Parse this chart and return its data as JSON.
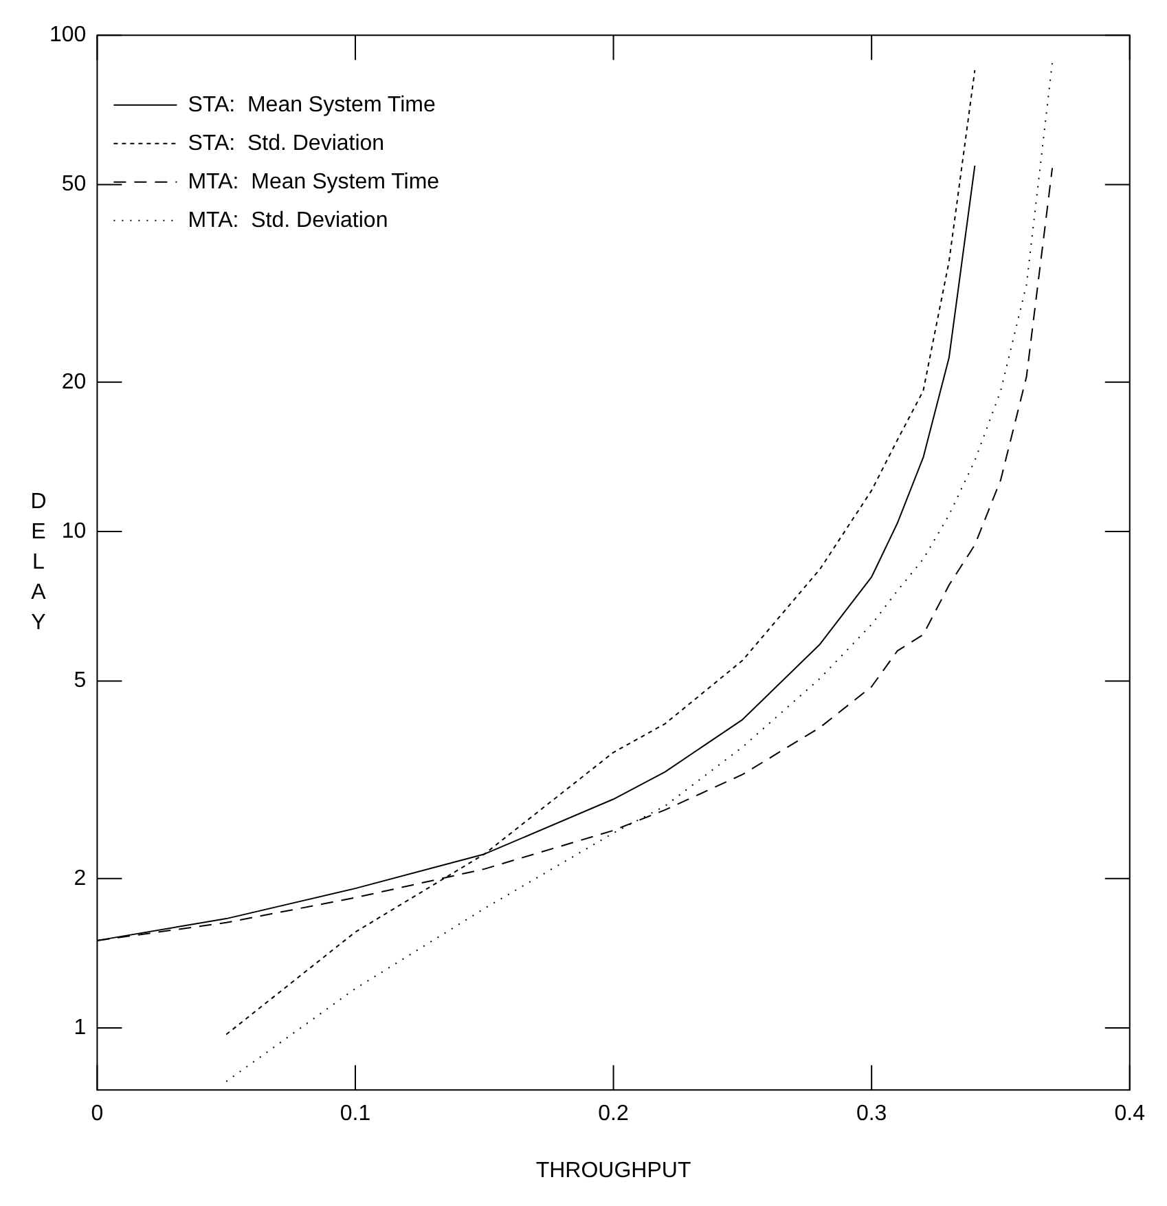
{
  "chart_data": {
    "type": "line",
    "xlabel": "THROUGHPUT",
    "ylabel": "DELAY",
    "log": "y",
    "xlim": [
      0,
      0.4
    ],
    "xticks": [
      0,
      0.1,
      0.2,
      0.3,
      0.4
    ],
    "ylim": [
      0.75,
      100
    ],
    "yticks": [
      1,
      2,
      5,
      10,
      20,
      50,
      100
    ],
    "grid": false,
    "legend": "top left",
    "marker": "none",
    "series": [
      {
        "name": "STA:  Mean System Time",
        "color": "#000000",
        "line_style": "solid",
        "x": [
          0,
          0.05,
          0.1,
          0.15,
          0.2,
          0.22,
          0.25,
          0.28,
          0.3,
          0.31,
          0.32,
          0.33,
          0.34
        ],
        "values": [
          1.5,
          1.66,
          1.91,
          2.24,
          2.89,
          3.28,
          4.18,
          5.93,
          8.1,
          10.4,
          14.1,
          22.4,
          54.6
        ]
      },
      {
        "name": "STA:  Std. Deviation",
        "color": "#000000",
        "line_style": "dashed",
        "x": [
          0.05,
          0.1,
          0.15,
          0.2,
          0.22,
          0.25,
          0.28,
          0.3,
          0.31,
          0.32,
          0.33,
          0.34
        ],
        "values": [
          0.97,
          1.56,
          2.24,
          3.59,
          4.1,
          5.5,
          8.4,
          12.1,
          15.3,
          19.2,
          35,
          85
        ]
      },
      {
        "name": "MTA:  Mean System Time",
        "color": "#000000",
        "line_style": "dashed",
        "x": [
          0,
          0.05,
          0.1,
          0.15,
          0.2,
          0.22,
          0.25,
          0.28,
          0.3,
          0.31,
          0.32,
          0.33,
          0.34,
          0.35,
          0.36,
          0.37
        ],
        "values": [
          1.5,
          1.63,
          1.83,
          2.09,
          2.5,
          2.75,
          3.24,
          4.03,
          4.87,
          5.75,
          6.2,
          7.8,
          9.4,
          12.7,
          20.5,
          54
        ]
      },
      {
        "name": "MTA:  Std. Deviation",
        "color": "#000000",
        "line_style": "dotted",
        "x": [
          0.05,
          0.1,
          0.15,
          0.2,
          0.22,
          0.25,
          0.28,
          0.3,
          0.31,
          0.32,
          0.33,
          0.34,
          0.35,
          0.36,
          0.37
        ],
        "values": [
          0.78,
          1.2,
          1.74,
          2.47,
          2.8,
          3.68,
          5.06,
          6.5,
          7.6,
          8.8,
          10.8,
          13.9,
          19.2,
          31.4,
          88
        ]
      }
    ]
  }
}
